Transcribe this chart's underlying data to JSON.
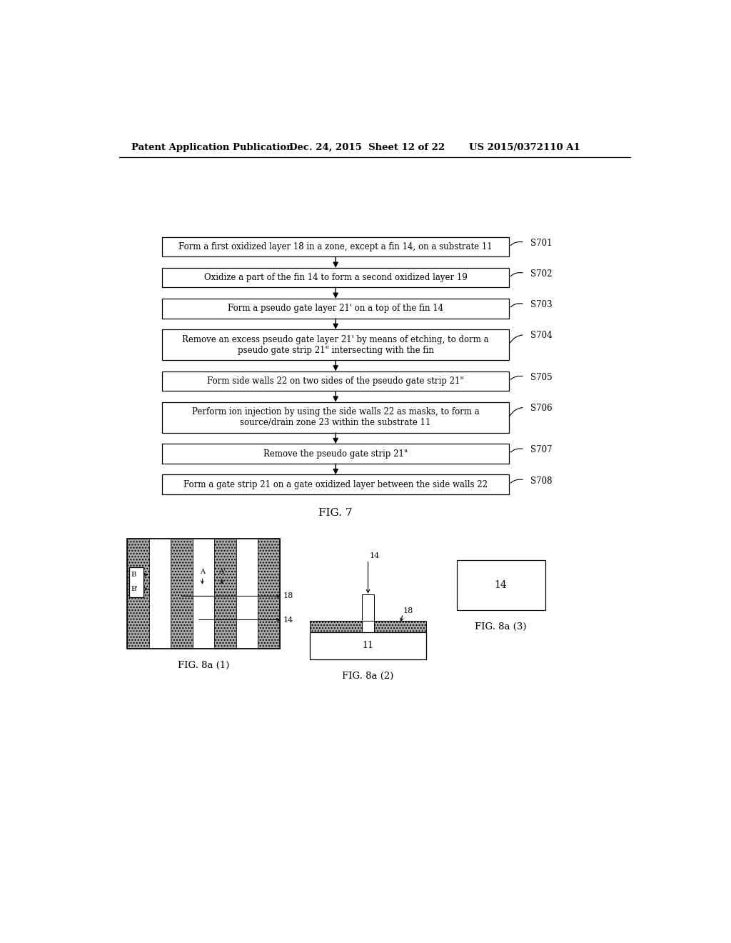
{
  "bg_color": "#ffffff",
  "header_left": "Patent Application Publication",
  "header_mid": "Dec. 24, 2015  Sheet 12 of 22",
  "header_right": "US 2015/0372110 A1",
  "steps": [
    {
      "label": "Form a first oxidized layer 18 in a zone, except a fin 14, on a substrate 11",
      "tag": "S701",
      "lines": 1
    },
    {
      "label": "Oxidize a part of the fin 14 to form a second oxidized layer 19",
      "tag": "S702",
      "lines": 1
    },
    {
      "label": "Form a pseudo gate layer 21' on a top of the fin 14",
      "tag": "S703",
      "lines": 1
    },
    {
      "label": "Remove an excess pseudo gate layer 21' by means of etching, to dorm a\npseudo gate strip 21\" intersecting with the fin",
      "tag": "S704",
      "lines": 2
    },
    {
      "label": "Form side walls 22 on two sides of the pseudo gate strip 21\"",
      "tag": "S705",
      "lines": 1
    },
    {
      "label": "Perform ion injection by using the side walls 22 as masks, to form a\nsource/drain zone 23 within the substrate 11",
      "tag": "S706",
      "lines": 2
    },
    {
      "label": "Remove the pseudo gate strip 21\"",
      "tag": "S707",
      "lines": 1
    },
    {
      "label": "Form a gate strip 21 on a gate oxidized layer between the side walls 22",
      "tag": "S708",
      "lines": 1
    }
  ],
  "fig7_label": "FIG. 7",
  "fig8a1_label": "FIG. 8a (1)",
  "fig8a2_label": "FIG. 8a (2)",
  "fig8a3_label": "FIG. 8a (3)"
}
